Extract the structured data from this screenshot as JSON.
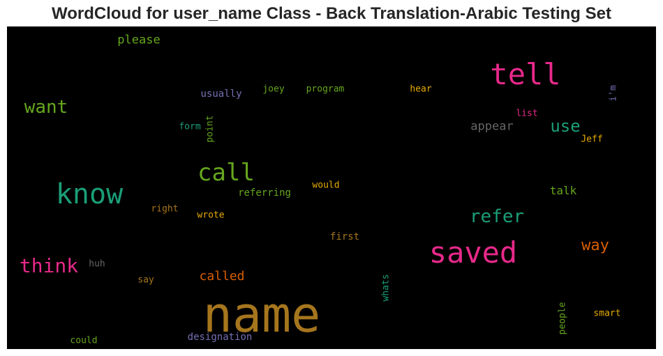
{
  "chart_data": {
    "type": "wordcloud",
    "title": "WordCloud for user_name Class - Back Translation-Arabic Testing Set",
    "background": "#000000",
    "words": [
      {
        "text": "name",
        "color": "#a6761d",
        "weight": 70
      },
      {
        "text": "tell",
        "color": "#e7298a",
        "weight": 42
      },
      {
        "text": "saved",
        "color": "#e7298a",
        "weight": 42
      },
      {
        "text": "know",
        "color": "#1b9e77",
        "weight": 40
      },
      {
        "text": "call",
        "color": "#66a61e",
        "weight": 34
      },
      {
        "text": "think",
        "color": "#e7298a",
        "weight": 28
      },
      {
        "text": "want",
        "color": "#66a61e",
        "weight": 26
      },
      {
        "text": "refer",
        "color": "#1b9e77",
        "weight": 26
      },
      {
        "text": "use",
        "color": "#1b9e77",
        "weight": 24
      },
      {
        "text": "way",
        "color": "#d95f02",
        "weight": 22
      },
      {
        "text": "called",
        "color": "#d95f02",
        "weight": 18
      },
      {
        "text": "appear",
        "color": "#666666",
        "weight": 17
      },
      {
        "text": "please",
        "color": "#66a61e",
        "weight": 17
      },
      {
        "text": "talk",
        "color": "#66a61e",
        "weight": 16
      },
      {
        "text": "referring",
        "color": "#66a61e",
        "weight": 14
      },
      {
        "text": "first",
        "color": "#a6761d",
        "weight": 14
      },
      {
        "text": "designation",
        "color": "#7570b3",
        "weight": 14
      },
      {
        "text": "usually",
        "color": "#7570b3",
        "weight": 14
      },
      {
        "text": "joey",
        "color": "#66a61e",
        "weight": 13
      },
      {
        "text": "program",
        "color": "#66a61e",
        "weight": 13
      },
      {
        "text": "hear",
        "color": "#e6ab02",
        "weight": 13
      },
      {
        "text": "would",
        "color": "#e6ab02",
        "weight": 13
      },
      {
        "text": "wrote",
        "color": "#e6ab02",
        "weight": 13
      },
      {
        "text": "right",
        "color": "#a6761d",
        "weight": 13
      },
      {
        "text": "huh",
        "color": "#666666",
        "weight": 13
      },
      {
        "text": "say",
        "color": "#a6761d",
        "weight": 13
      },
      {
        "text": "could",
        "color": "#66a61e",
        "weight": 13
      },
      {
        "text": "form",
        "color": "#1b9e77",
        "weight": 13
      },
      {
        "text": "list",
        "color": "#e7298a",
        "weight": 13
      },
      {
        "text": "Jeff",
        "color": "#e6ab02",
        "weight": 13
      },
      {
        "text": "smart",
        "color": "#e6ab02",
        "weight": 13
      },
      {
        "text": "point",
        "color": "#66a61e",
        "weight": 13,
        "vertical": true
      },
      {
        "text": "whats",
        "color": "#1b9e77",
        "weight": 13,
        "vertical": true
      },
      {
        "text": "people",
        "color": "#66a61e",
        "weight": 13,
        "vertical": true
      },
      {
        "text": "i'm",
        "color": "#7570b3",
        "weight": 13,
        "vertical": true
      }
    ]
  }
}
